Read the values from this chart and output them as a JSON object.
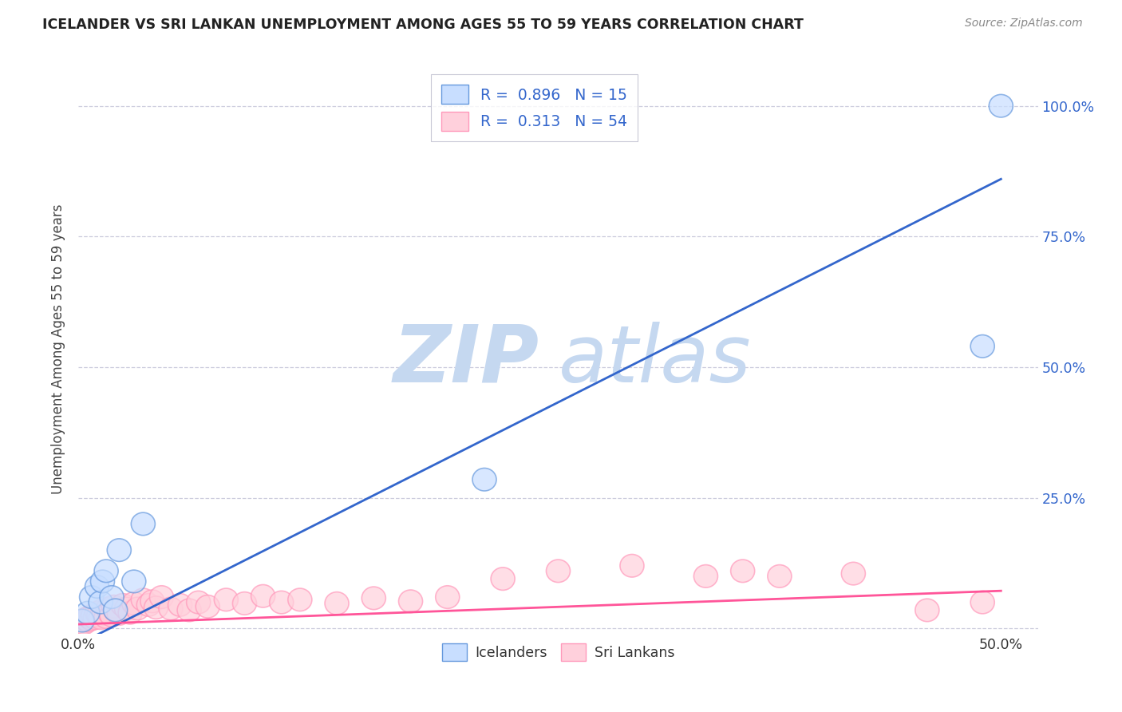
{
  "title": "ICELANDER VS SRI LANKAN UNEMPLOYMENT AMONG AGES 55 TO 59 YEARS CORRELATION CHART",
  "source": "Source: ZipAtlas.com",
  "ylabel": "Unemployment Among Ages 55 to 59 years",
  "xlim": [
    0.0,
    0.52
  ],
  "ylim": [
    -0.01,
    1.08
  ],
  "iceland_R": 0.896,
  "iceland_N": 15,
  "srilanka_R": 0.313,
  "srilanka_N": 54,
  "iceland_face_color": "#C8DEFF",
  "iceland_edge_color": "#6699DD",
  "iceland_line_color": "#3366CC",
  "srilanka_face_color": "#FFD0DC",
  "srilanka_edge_color": "#FF99BB",
  "srilanka_line_color": "#FF5599",
  "watermark_color": "#C5D8F0",
  "background_color": "#FFFFFF",
  "grid_color": "#CCCCDD",
  "iceland_x": [
    0.002,
    0.005,
    0.007,
    0.01,
    0.012,
    0.013,
    0.015,
    0.018,
    0.02,
    0.022,
    0.03,
    0.035,
    0.22,
    0.49,
    0.5
  ],
  "iceland_y": [
    0.015,
    0.03,
    0.06,
    0.08,
    0.05,
    0.09,
    0.11,
    0.06,
    0.035,
    0.15,
    0.09,
    0.2,
    0.285,
    0.54,
    1.0
  ],
  "srilanka_x": [
    0.001,
    0.002,
    0.003,
    0.004,
    0.005,
    0.006,
    0.007,
    0.008,
    0.009,
    0.01,
    0.011,
    0.012,
    0.013,
    0.014,
    0.015,
    0.016,
    0.017,
    0.018,
    0.019,
    0.02,
    0.022,
    0.024,
    0.026,
    0.028,
    0.03,
    0.032,
    0.035,
    0.038,
    0.04,
    0.042,
    0.045,
    0.05,
    0.055,
    0.06,
    0.065,
    0.07,
    0.08,
    0.09,
    0.1,
    0.11,
    0.12,
    0.14,
    0.16,
    0.18,
    0.2,
    0.23,
    0.26,
    0.3,
    0.34,
    0.36,
    0.38,
    0.42,
    0.46,
    0.49
  ],
  "srilanka_y": [
    0.008,
    0.012,
    0.01,
    0.018,
    0.015,
    0.022,
    0.018,
    0.025,
    0.02,
    0.03,
    0.025,
    0.02,
    0.035,
    0.028,
    0.022,
    0.038,
    0.03,
    0.025,
    0.042,
    0.035,
    0.028,
    0.045,
    0.038,
    0.03,
    0.048,
    0.038,
    0.055,
    0.045,
    0.052,
    0.04,
    0.06,
    0.038,
    0.045,
    0.035,
    0.05,
    0.042,
    0.055,
    0.048,
    0.062,
    0.05,
    0.055,
    0.048,
    0.058,
    0.052,
    0.06,
    0.095,
    0.11,
    0.12,
    0.1,
    0.11,
    0.1,
    0.105,
    0.035,
    0.05
  ],
  "iceland_line_x0": 0.0,
  "iceland_line_x1": 0.5,
  "iceland_line_y0": -0.03,
  "iceland_line_y1": 0.86,
  "srilanka_line_x0": 0.0,
  "srilanka_line_x1": 0.5,
  "srilanka_line_y0": 0.008,
  "srilanka_line_y1": 0.072
}
